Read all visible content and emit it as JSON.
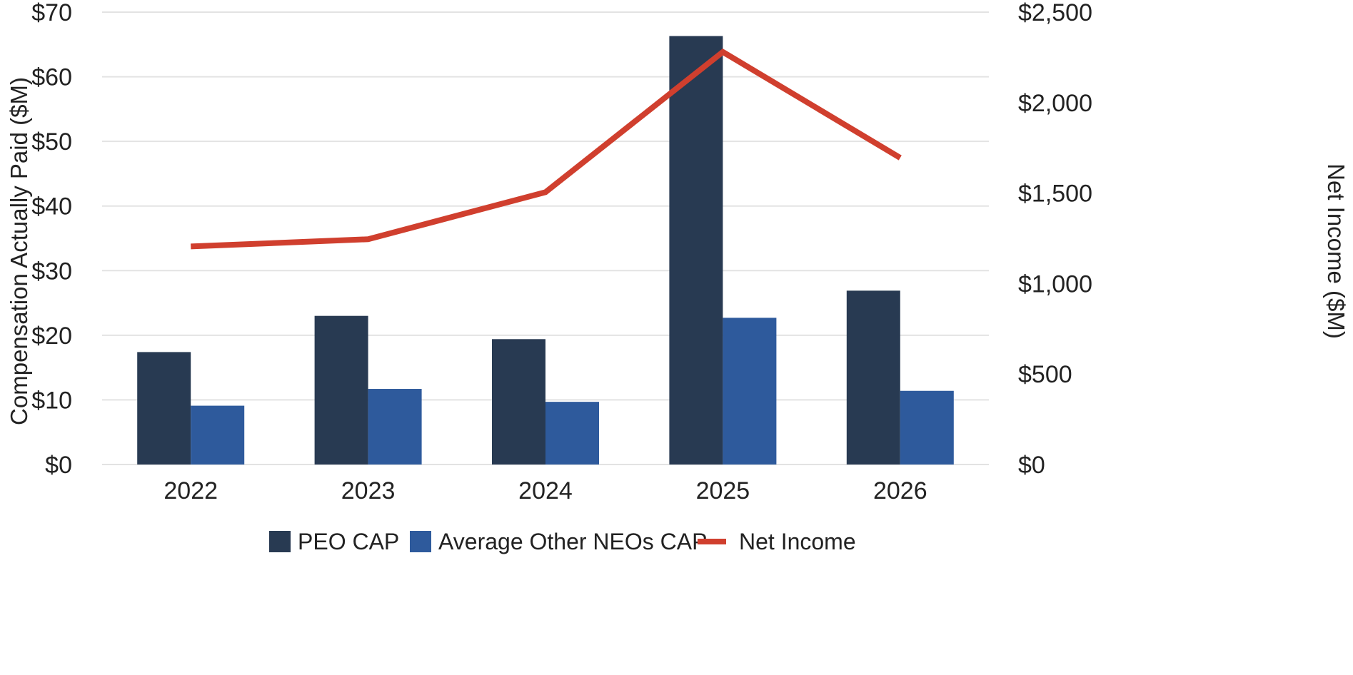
{
  "chart_data": {
    "type": "bar",
    "categories": [
      "2022",
      "2023",
      "2024",
      "2025",
      "2026"
    ],
    "series": [
      {
        "name": "PEO CAP",
        "kind": "bar",
        "axis": "left",
        "color": "#283a52",
        "values": [
          17.4,
          23.0,
          19.4,
          66.3,
          26.9
        ]
      },
      {
        "name": "Average Other NEOs CAP",
        "kind": "bar",
        "axis": "left",
        "color": "#2e5a9c",
        "values": [
          9.1,
          11.7,
          9.7,
          22.7,
          11.4
        ]
      },
      {
        "name": "Net Income",
        "kind": "line",
        "axis": "right",
        "color": "#d03f2e",
        "values": [
          1205,
          1245,
          1505,
          2280,
          1695
        ]
      }
    ],
    "ylabel": "Compensation Actually Paid ($M)",
    "y2label": "Net  Income ($M)",
    "ylim": [
      0,
      70
    ],
    "y2lim": [
      0,
      2500
    ],
    "yticks": [
      "$0",
      "$10",
      "$20",
      "$30",
      "$40",
      "$50",
      "$60",
      "$70"
    ],
    "y2ticks": [
      "$0",
      "$500",
      "$1,000",
      "$1,500",
      "$2,000",
      "$2,500"
    ],
    "grid": true,
    "legend_position": "bottom"
  }
}
